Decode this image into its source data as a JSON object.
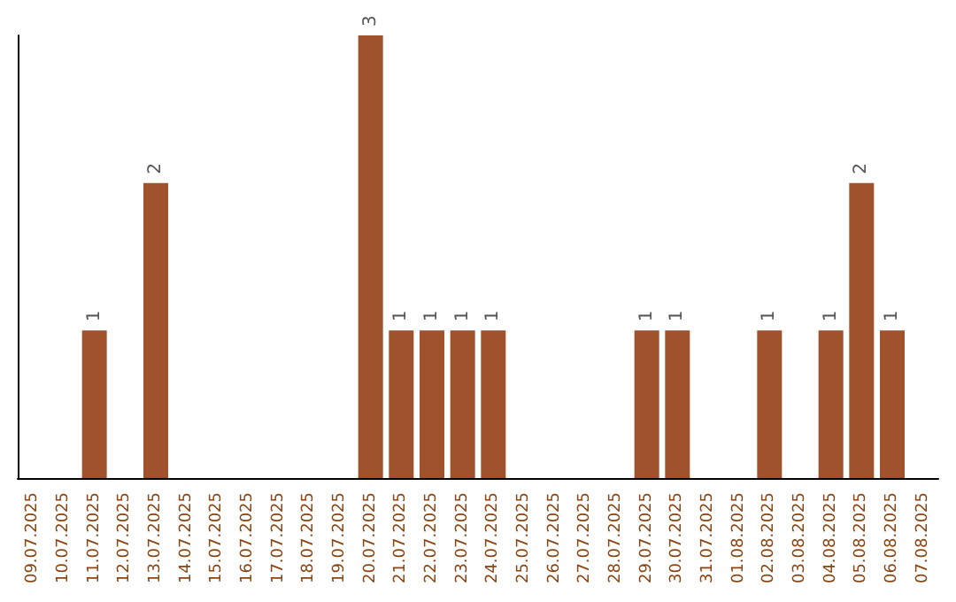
{
  "chart_data": {
    "type": "bar",
    "color": "#a0522d",
    "categories": [
      "09.07.2025",
      "10.07.2025",
      "11.07.2025",
      "12.07.2025",
      "13.07.2025",
      "14.07.2025",
      "15.07.2025",
      "16.07.2025",
      "17.07.2025",
      "18.07.2025",
      "19.07.2025",
      "20.07.2025",
      "21.07.2025",
      "22.07.2025",
      "23.07.2025",
      "24.07.2025",
      "25.07.2025",
      "26.07.2025",
      "27.07.2025",
      "28.07.2025",
      "29.07.2025",
      "30.07.2025",
      "31.07.2025",
      "01.08.2025",
      "02.08.2025",
      "03.08.2025",
      "04.08.2025",
      "05.08.2025",
      "06.08.2025",
      "07.08.2025"
    ],
    "values": [
      0,
      0,
      1,
      0,
      2,
      0,
      0,
      0,
      0,
      0,
      0,
      3,
      1,
      1,
      1,
      1,
      0,
      0,
      0,
      0,
      1,
      1,
      0,
      0,
      1,
      0,
      1,
      2,
      1,
      0
    ],
    "value_labels": [
      null,
      null,
      "1",
      null,
      "2",
      null,
      null,
      null,
      null,
      null,
      null,
      "3",
      "1",
      "1",
      "1",
      "1",
      null,
      null,
      null,
      null,
      "1",
      "1",
      null,
      null,
      "1",
      null,
      "1",
      "2",
      "1",
      null
    ],
    "grid": false
  }
}
